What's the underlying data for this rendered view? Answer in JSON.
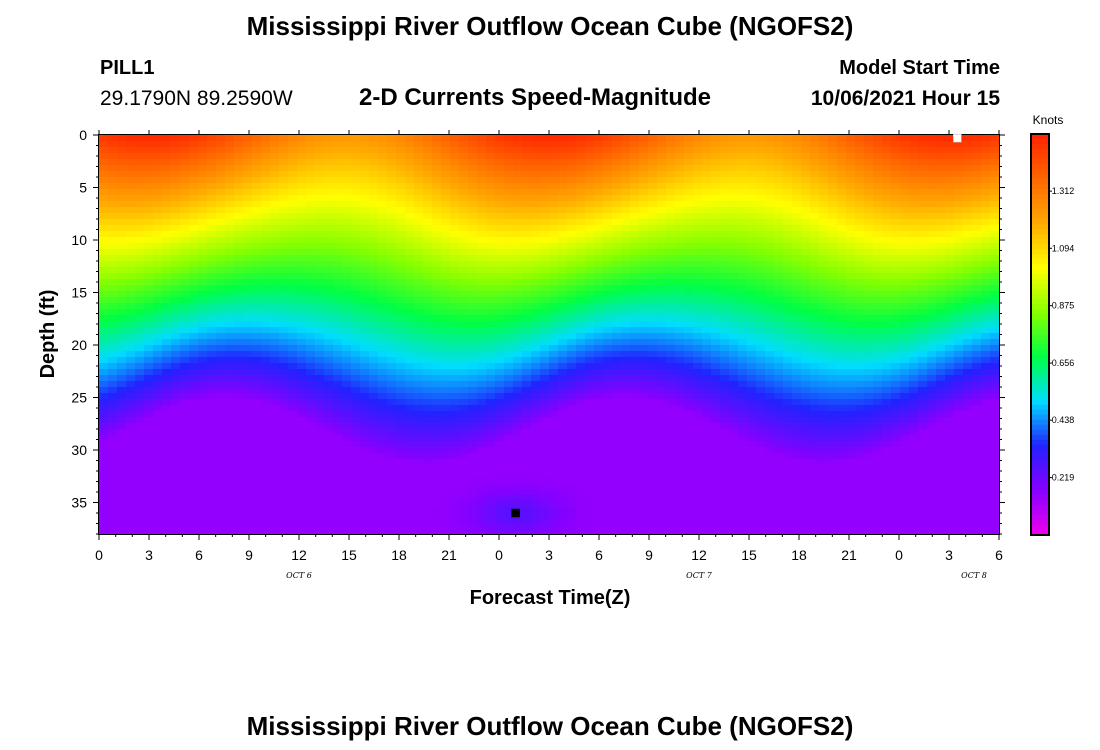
{
  "header": {
    "title": "Mississippi River Outflow Ocean Cube (NGOFS2)",
    "station_name": "PILL1",
    "station_coords": "29.1790N  89.2590W",
    "plot_title": "2-D Currents Speed-Magnitude",
    "model_start_label": "Model Start Time",
    "model_start_value": "10/06/2021 Hour 15"
  },
  "footer": {
    "title": "Mississippi River Outflow Ocean Cube (NGOFS2)"
  },
  "chart_data": {
    "type": "heatmap",
    "title": "2-D Currents Speed-Magnitude",
    "xlabel": "Forecast Time(Z)",
    "ylabel": "Depth (ft)",
    "x_range_hours": [
      0,
      54
    ],
    "x_tick_labels": [
      "0",
      "3",
      "6",
      "9",
      "12",
      "15",
      "18",
      "21",
      "0",
      "3",
      "6",
      "9",
      "12",
      "15",
      "18",
      "21",
      "0",
      "3",
      "6"
    ],
    "date_labels": [
      "OCT 6",
      "OCT 7",
      "OCT 8"
    ],
    "y_range": [
      0,
      38
    ],
    "y_reversed": true,
    "y_ticks": [
      0,
      5,
      10,
      15,
      20,
      25,
      30,
      35
    ],
    "colorbar": {
      "units": "Knots",
      "min": 0.0,
      "max": 1.53,
      "labels": [
        "1.312",
        "1.094",
        "0.875",
        "0.656",
        "0.438",
        "0.219"
      ],
      "label_values": [
        1.312,
        1.094,
        0.875,
        0.656,
        0.438,
        0.219
      ],
      "colors": [
        "#ee00ee",
        "#8800ff",
        "#2222ff",
        "#00ddff",
        "#00ff44",
        "#88ff00",
        "#ffff00",
        "#ffaa00",
        "#ff6600",
        "#ff2200"
      ]
    },
    "markers": [
      {
        "type": "max",
        "hour": 51.5,
        "depth": 0.3,
        "color": "#ffffff"
      },
      {
        "type": "min",
        "hour": 25,
        "depth": 36,
        "color": "#000000"
      }
    ],
    "grid": false
  }
}
